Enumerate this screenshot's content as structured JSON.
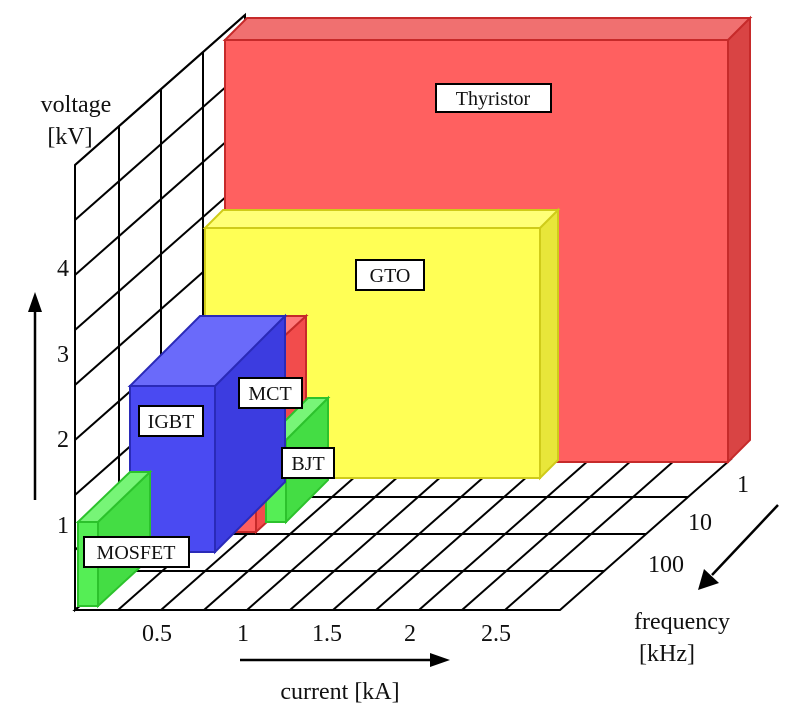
{
  "axes": {
    "voltage": {
      "title_line1": "voltage",
      "title_line2": "[kV]",
      "ticks": [
        "1",
        "2",
        "3",
        "4"
      ]
    },
    "current": {
      "title": "current [kA]",
      "ticks": [
        "0.5",
        "1",
        "1.5",
        "2",
        "2.5"
      ]
    },
    "frequency": {
      "title_line1": "frequency",
      "title_line2": "[kHz]",
      "ticks": [
        "1",
        "10",
        "100"
      ]
    }
  },
  "devices": [
    {
      "name": "Thyristor",
      "color": "#ff6060"
    },
    {
      "name": "GTO",
      "color": "#ffff55"
    },
    {
      "name": "IGBT",
      "color": "#4a4af2"
    },
    {
      "name": "MCT",
      "color": "#ff5f5f"
    },
    {
      "name": "BJT",
      "color": "#55ee55"
    },
    {
      "name": "MOSFET",
      "color": "#55ee55"
    }
  ],
  "colors": {
    "thyristor": "#ff6060",
    "gto": "#ffff55",
    "igbt": "#4a4af2",
    "mct": "#ff5f5f",
    "bjt_mosfet": "#55ee55",
    "grid": "#000000"
  }
}
